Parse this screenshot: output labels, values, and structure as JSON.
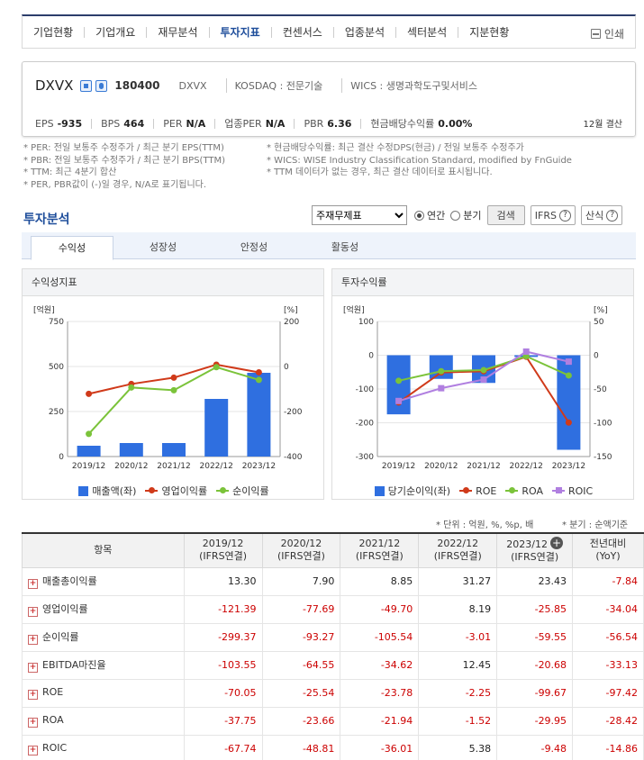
{
  "nav": {
    "items": [
      "기업현황",
      "기업개요",
      "재무분석",
      "투자지표",
      "컨센서스",
      "업종분석",
      "섹터분석",
      "지분현황"
    ],
    "active_index": 3,
    "print": "인쇄"
  },
  "company": {
    "name": "DXVX",
    "code": "180400",
    "name_short": "DXVX",
    "market": "KOSDAQ : 전문기술",
    "wics": "WICS : 생명과학도구및서비스"
  },
  "metrics": [
    {
      "k": "EPS",
      "v": "-935"
    },
    {
      "k": "BPS",
      "v": "464"
    },
    {
      "k": "PER",
      "v": "N/A"
    },
    {
      "k": "업종PER",
      "v": "N/A"
    },
    {
      "k": "PBR",
      "v": "6.36"
    },
    {
      "k": "현금배당수익률",
      "v": "0.00%"
    }
  ],
  "metrics_period": "12월 결산",
  "notes_left": [
    "* PER: 전일 보통주 수정주가 / 최근 분기 EPS(TTM)",
    "* PBR: 전일 보통주 수정주가 / 최근 분기 BPS(TTM)",
    "* TTM: 최근 4분기 합산",
    "* PER, PBR값이 (-)일 경우, N/A로 표기됩니다."
  ],
  "notes_right": [
    "* 현금배당수익률: 최근 결산 수정DPS(현금) / 전일 보통주 수정주가",
    "* WICS: WISE Industry Classification Standard, modified by FnGuide",
    "* TTM 데이터가 없는 경우, 최근 결산 데이터로 표시됩니다."
  ],
  "section_title": "투자분석",
  "controls": {
    "select_value": "주재무제표",
    "radio_annual": "연간",
    "radio_quarter": "분기",
    "search": "검색",
    "ifrs": "IFRS",
    "formula": "산식"
  },
  "tabs": [
    "수익성",
    "성장성",
    "안정성",
    "활동성"
  ],
  "panels": {
    "left_title": "수익성지표",
    "right_title": "투자수익률"
  },
  "chart_data": [
    {
      "type": "bar+line",
      "title": "수익성지표",
      "categories": [
        "2019/12",
        "2020/12",
        "2021/12",
        "2022/12",
        "2023/12"
      ],
      "ylabel_left": "[억원]",
      "ylabel_right": "[%]",
      "ylim_left": [
        0,
        750
      ],
      "ylim_right": [
        -400,
        200
      ],
      "yticks_left": [
        "750",
        "500",
        "250",
        "0"
      ],
      "yticks_right": [
        "200",
        "0",
        "-200",
        "-400"
      ],
      "series": [
        {
          "name": "매출액(좌)",
          "type": "bar",
          "axis": "left",
          "color": "#2f6fe0",
          "values": [
            60,
            75,
            75,
            320,
            465
          ]
        },
        {
          "name": "영업이익률",
          "type": "line",
          "axis": "right",
          "color": "#d03a1a",
          "values": [
            -121.39,
            -77.69,
            -49.7,
            8.19,
            -25.85
          ]
        },
        {
          "name": "순이익률",
          "type": "line",
          "axis": "right",
          "color": "#7bc33a",
          "values": [
            -299.37,
            -93.27,
            -105.54,
            -3.01,
            -59.55
          ]
        }
      ]
    },
    {
      "type": "bar+line",
      "title": "투자수익률",
      "categories": [
        "2019/12",
        "2020/12",
        "2021/12",
        "2022/12",
        "2023/12"
      ],
      "ylabel_left": "[억원]",
      "ylabel_right": "[%]",
      "ylim_left": [
        -300,
        100
      ],
      "ylim_right": [
        -150,
        50
      ],
      "yticks_left": [
        "100",
        "0",
        "-100",
        "-200",
        "-300"
      ],
      "yticks_right": [
        "50",
        "0",
        "-50",
        "-100",
        "-150"
      ],
      "series": [
        {
          "name": "당기순이익(좌)",
          "type": "bar",
          "axis": "left",
          "color": "#2f6fe0",
          "values": [
            -175,
            -70,
            -82,
            -5,
            -280
          ]
        },
        {
          "name": "ROE",
          "type": "line",
          "axis": "right",
          "color": "#d03a1a",
          "values": [
            -70.05,
            -25.54,
            -23.78,
            -2.25,
            -99.67
          ]
        },
        {
          "name": "ROA",
          "type": "line",
          "axis": "right",
          "color": "#7bc33a",
          "values": [
            -37.75,
            -23.66,
            -21.94,
            -1.52,
            -29.95
          ]
        },
        {
          "name": "ROIC",
          "type": "line",
          "axis": "right",
          "color": "#b07fe0",
          "values": [
            -67.74,
            -48.81,
            -36.01,
            5.38,
            -9.48
          ]
        }
      ]
    }
  ],
  "unit_note": "* 단위 : 억원, %, %p, 배",
  "period_note": "* 분기 : 순액기준",
  "table": {
    "headers": [
      "항목",
      "2019/12",
      "2020/12",
      "2021/12",
      "2022/12",
      "2023/12",
      "전년대비"
    ],
    "subheaders": [
      "",
      "(IFRS연결)",
      "(IFRS연결)",
      "(IFRS연결)",
      "(IFRS연결)",
      "(IFRS연결)",
      "(YoY)"
    ],
    "rows": [
      {
        "label": "매출총이익률",
        "values": [
          "13.30",
          "7.90",
          "8.85",
          "31.27",
          "23.43",
          "-7.84"
        ]
      },
      {
        "label": "영업이익률",
        "values": [
          "-121.39",
          "-77.69",
          "-49.70",
          "8.19",
          "-25.85",
          "-34.04"
        ]
      },
      {
        "label": "순이익률",
        "values": [
          "-299.37",
          "-93.27",
          "-105.54",
          "-3.01",
          "-59.55",
          "-56.54"
        ]
      },
      {
        "label": "EBITDA마진율",
        "values": [
          "-103.55",
          "-64.55",
          "-34.62",
          "12.45",
          "-20.68",
          "-33.13"
        ]
      },
      {
        "label": "ROE",
        "values": [
          "-70.05",
          "-25.54",
          "-23.78",
          "-2.25",
          "-99.67",
          "-97.42"
        ]
      },
      {
        "label": "ROA",
        "values": [
          "-37.75",
          "-23.66",
          "-21.94",
          "-1.52",
          "-29.95",
          "-28.42"
        ]
      },
      {
        "label": "ROIC",
        "values": [
          "-67.74",
          "-48.81",
          "-36.01",
          "5.38",
          "-9.48",
          "-14.86"
        ]
      }
    ]
  }
}
